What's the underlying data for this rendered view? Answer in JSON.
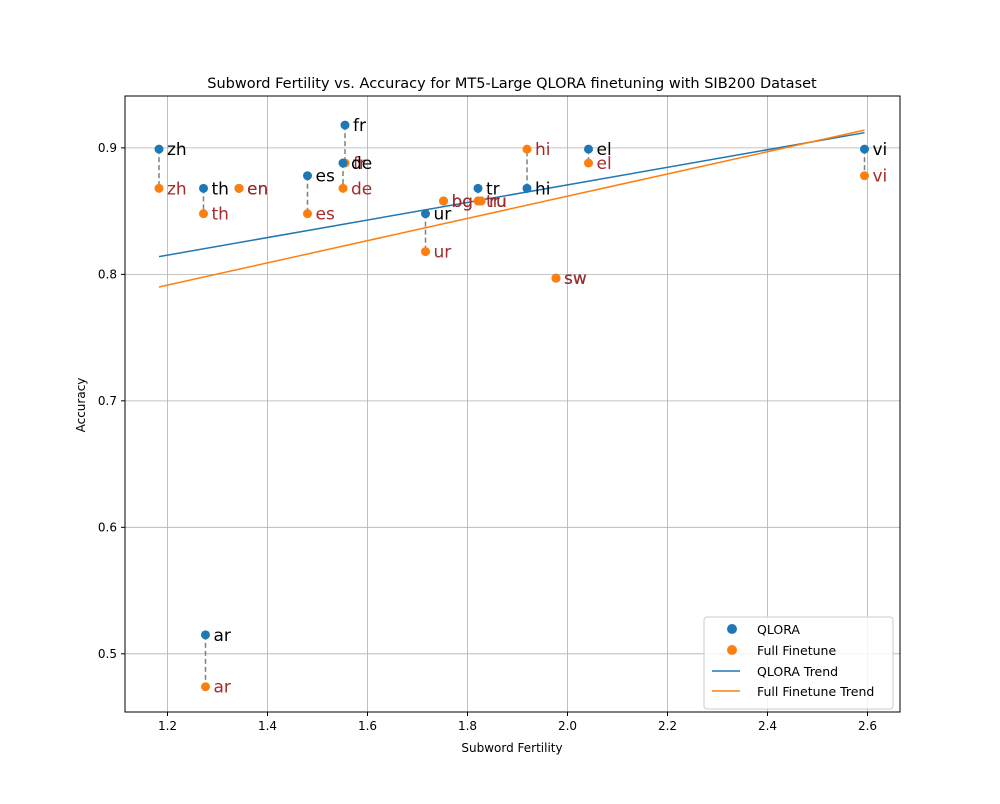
{
  "chart_data": {
    "type": "scatter",
    "title": "Subword Fertility vs. Accuracy for MT5-Large QLORA finetuning with SIB200 Dataset",
    "xlabel": "Subword Fertility",
    "ylabel": "Accuracy",
    "xlim": [
      1.115,
      2.665
    ],
    "ylim": [
      0.454,
      0.941
    ],
    "xticks": [
      "1.2",
      "1.4",
      "1.6",
      "1.8",
      "2.0",
      "2.2",
      "2.4",
      "2.6"
    ],
    "yticks": [
      "0.5",
      "0.6",
      "0.7",
      "0.8",
      "0.9"
    ],
    "grid": true,
    "legend_position": "bottom-right",
    "legend": [
      "QLORA",
      "Full Finetune",
      "QLORA Trend",
      "Full Finetune Trend"
    ],
    "colors": {
      "qlora": "#1f77b4",
      "full": "#ff7f0e",
      "full_label": "#a52a2a",
      "qlora_label": "#000000",
      "connector": "#808080",
      "grid": "#b0b0b0"
    },
    "languages": [
      "zh",
      "th",
      "en",
      "es",
      "fr",
      "de",
      "ur",
      "bg",
      "tr",
      "ru",
      "hi",
      "sw",
      "el",
      "vi",
      "ar"
    ],
    "x": [
      1.183,
      1.272,
      1.343,
      1.48,
      1.555,
      1.551,
      1.716,
      1.752,
      1.821,
      1.827,
      1.919,
      1.977,
      2.042,
      2.594,
      1.276
    ],
    "series": [
      {
        "name": "QLORA",
        "values": [
          0.899,
          0.868,
          0.868,
          0.878,
          0.918,
          0.888,
          0.848,
          0.858,
          0.868,
          0.858,
          0.868,
          0.797,
          0.899,
          0.899,
          0.515
        ]
      },
      {
        "name": "Full Finetune",
        "values": [
          0.868,
          0.848,
          0.868,
          0.848,
          0.888,
          0.868,
          0.818,
          0.858,
          0.858,
          0.858,
          0.899,
          0.797,
          0.888,
          0.878,
          0.474
        ]
      }
    ],
    "trends": [
      {
        "name": "QLORA Trend",
        "x": [
          1.183,
          2.594
        ],
        "y": [
          0.814,
          0.912
        ]
      },
      {
        "name": "Full Finetune Trend",
        "x": [
          1.183,
          2.594
        ],
        "y": [
          0.79,
          0.914
        ]
      }
    ]
  }
}
